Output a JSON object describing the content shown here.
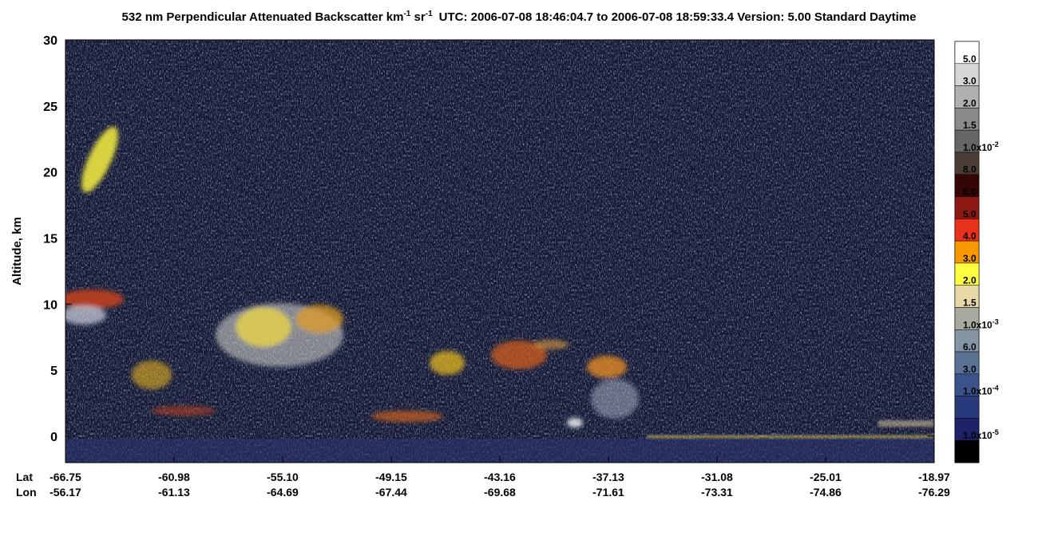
{
  "chart_data": {
    "type": "heatmap",
    "title_parts": [
      "532 nm Perpendicular Attenuated Backscatter km",
      "-1",
      " sr",
      "-1",
      "UTC: 2006-07-08 18:46:04.7 to 2006-07-08 18:59:33.4  Version: 5.00 Standard Daytime"
    ],
    "y_label": "Altitude, km",
    "ylim": [
      -2,
      30
    ],
    "yticks": [
      0,
      5,
      10,
      15,
      20,
      25,
      30
    ],
    "x_row_labels": [
      "Lat",
      "Lon"
    ],
    "lat_labels": [
      "-66.75",
      "-60.98",
      "-55.10",
      "-49.15",
      "-43.16",
      "-37.13",
      "-31.08",
      "-25.01",
      "-18.97"
    ],
    "lon_labels": [
      "-56.17",
      "-61.13",
      "-64.69",
      "-67.44",
      "-69.68",
      "-71.61",
      "-73.31",
      "-74.86",
      "-76.29"
    ],
    "colorbar": {
      "colors": [
        "#ffffff",
        "#d6d6d6",
        "#b0b0b0",
        "#8a8a8a",
        "#666666",
        "#4a3d38",
        "#360606",
        "#8c1a12",
        "#e8301a",
        "#f89800",
        "#ffff40",
        "#e8d8a8",
        "#a8aaa0",
        "#8494a4",
        "#5c7294",
        "#3c528a",
        "#283a7c",
        "#1e2268",
        "#000000"
      ],
      "labels": [
        {
          "text": "5.0"
        },
        {
          "text": "3.0"
        },
        {
          "text": "2.0"
        },
        {
          "text": "1.5"
        },
        {
          "text": "1.0x10",
          "sup": "-2"
        },
        {
          "text": "8.0"
        },
        {
          "text": "6.0"
        },
        {
          "text": "5.0"
        },
        {
          "text": "4.0"
        },
        {
          "text": "3.0"
        },
        {
          "text": "2.0"
        },
        {
          "text": "1.5"
        },
        {
          "text": "1.0x10",
          "sup": "-3"
        },
        {
          "text": "6.0"
        },
        {
          "text": "3.0"
        },
        {
          "text": "1.0x10",
          "sup": "-4"
        },
        {
          "text": "1.0x10",
          "sup": "-5"
        }
      ]
    }
  }
}
